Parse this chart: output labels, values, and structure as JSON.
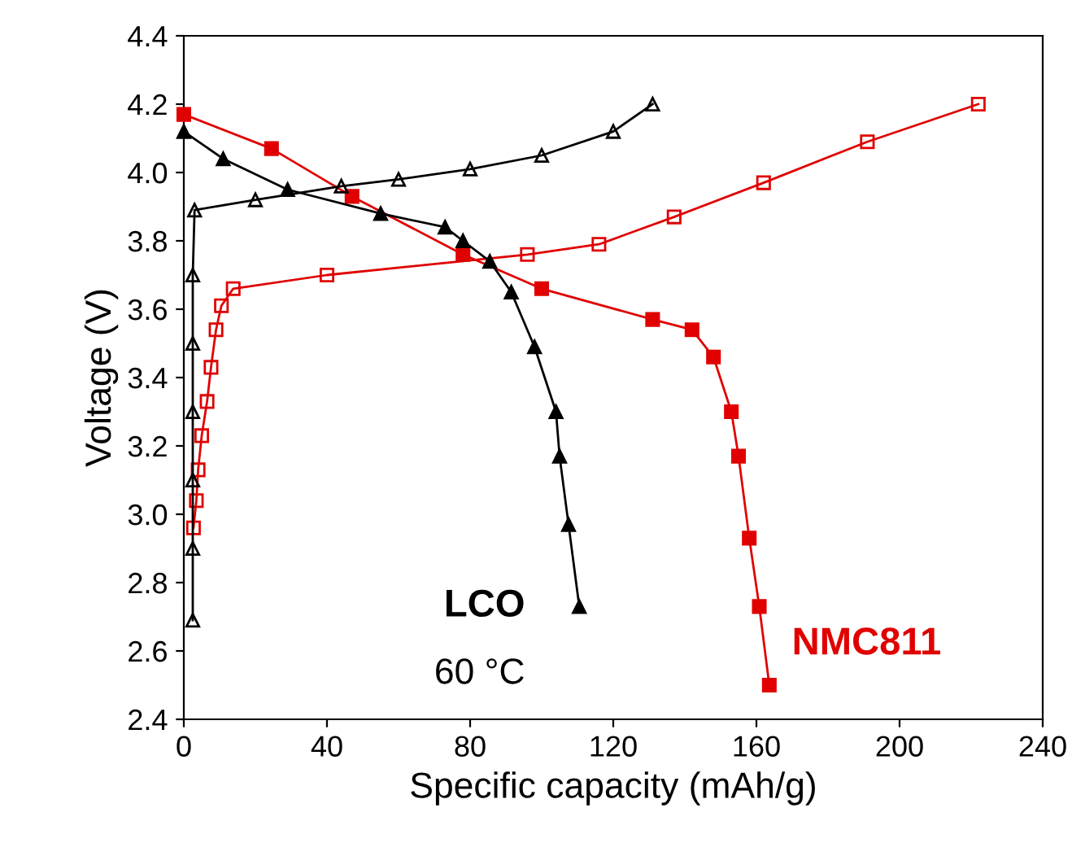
{
  "chart_data": {
    "type": "line",
    "xlabel": "Specific capacity (mAh/g)",
    "ylabel": "Voltage (V)",
    "xlim": [
      0,
      240
    ],
    "xticks": [
      0,
      40,
      80,
      120,
      160,
      200,
      240
    ],
    "ylim": [
      2.4,
      4.4
    ],
    "yticks": [
      2.4,
      2.6,
      2.8,
      {
        "value": 3.0,
        "label": "3.0"
      },
      3.2,
      3.4,
      3.6,
      3.8,
      {
        "value": 4.0,
        "label": "4.0"
      },
      4.2,
      4.4
    ],
    "grid": false,
    "legend": false,
    "line_style": "solid",
    "series": [
      {
        "color": "#000000",
        "marker": "triangle",
        "x": [
          2.5,
          2.5,
          2.5,
          2.5,
          2.5,
          2.5,
          3,
          20,
          44,
          60,
          80,
          100,
          120,
          131
        ],
        "values": [
          2.69,
          2.9,
          3.1,
          3.3,
          3.5,
          3.7,
          3.89,
          3.92,
          3.96,
          3.98,
          4.01,
          4.05,
          4.12,
          4.2
        ]
      },
      {
        "name": "LCO",
        "color": "#000000",
        "marker": "triangle",
        "x": [
          0,
          11,
          29,
          55,
          73,
          78,
          85.5,
          91.5,
          98,
          104,
          105,
          107.5,
          110.5
        ],
        "values": [
          4.12,
          4.04,
          3.95,
          3.88,
          3.84,
          3.8,
          3.74,
          3.65,
          3.49,
          3.3,
          3.17,
          2.97,
          2.73
        ]
      },
      {
        "color": "#e00000",
        "marker": "square",
        "x": [
          2.7,
          3.5,
          4,
          5,
          6.5,
          7.6,
          9,
          10.5,
          13.8,
          40,
          96,
          116,
          137,
          162,
          191,
          222
        ],
        "values": [
          2.96,
          3.04,
          3.13,
          3.23,
          3.33,
          3.43,
          3.54,
          3.61,
          3.66,
          3.7,
          3.76,
          3.79,
          3.87,
          3.97,
          4.09,
          4.2
        ]
      },
      {
        "name": "NMC811",
        "color": "#e00000",
        "marker": "square",
        "x": [
          0,
          24.5,
          47,
          78,
          100,
          131,
          142,
          148,
          153,
          155,
          158,
          160.8,
          163.6
        ],
        "values": [
          4.17,
          4.07,
          3.93,
          3.76,
          3.66,
          3.57,
          3.54,
          3.46,
          3.3,
          3.17,
          2.93,
          2.73,
          2.5
        ]
      }
    ],
    "annotations": [
      "60 °C"
    ]
  }
}
